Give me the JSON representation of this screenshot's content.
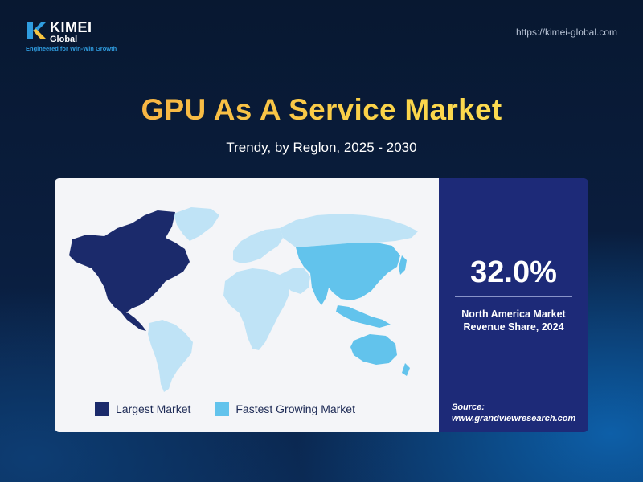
{
  "brand": {
    "name": "KIMEI",
    "sub": "Global",
    "tagline": "Engineered for Win-Win Growth",
    "url": "https://kimei-global.com",
    "colors": {
      "blue": "#2f9de0",
      "yellow": "#f6c43f"
    }
  },
  "header": {
    "title": "GPU As A Service Market",
    "subtitle": "Trendy, by Reglon, 2025 - 2030"
  },
  "map": {
    "legend": [
      {
        "label": "Largest Market",
        "color": "#1b2a6b"
      },
      {
        "label": "Fastest Growing Market",
        "color": "#62c3ec"
      }
    ],
    "colors": {
      "default_land": "#bfe3f6",
      "largest": "#1b2a6b",
      "fastest": "#62c3ec"
    }
  },
  "stat": {
    "value": "32.0%",
    "description": "North America Market Revenue Share, 2024",
    "source_label": "Source:",
    "source_url": "www.grandviewresearch.com"
  }
}
